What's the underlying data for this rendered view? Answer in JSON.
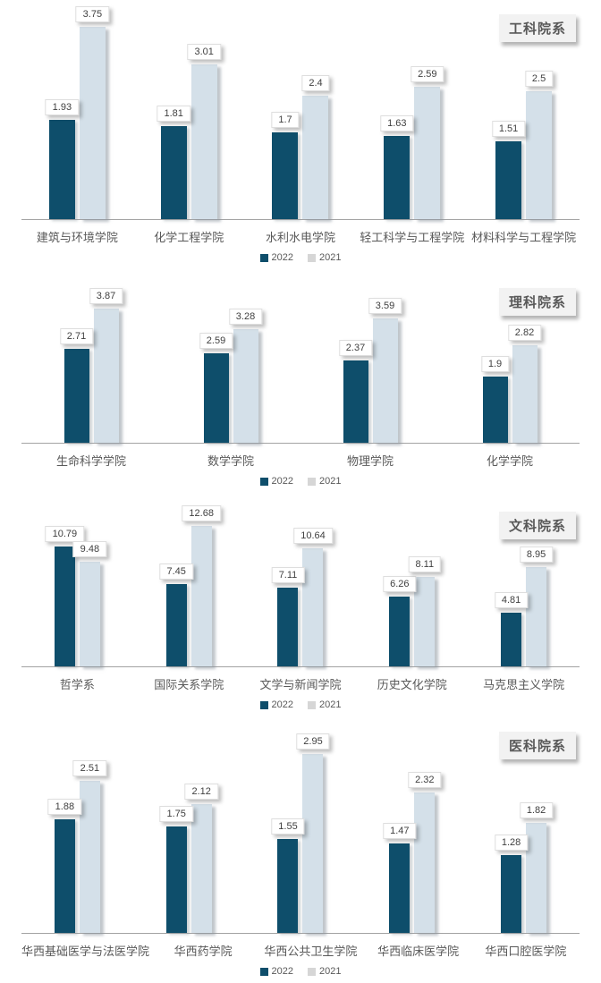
{
  "page": {
    "background": "#ffffff"
  },
  "colors": {
    "series_2022": "#0e4e6b",
    "series_2021": "#d4e0e9",
    "legend_2022_swatch": "#0e4e6b",
    "legend_2021_swatch": "#d6d6d6",
    "axis_line": "#a3a3a3",
    "category_text": "#595959",
    "value_text": "#3f3f3f",
    "badge_bg": "#f2f2f2",
    "badge_text": "#595959"
  },
  "chart_data": [
    {
      "type": "bar",
      "title": "工科院系",
      "grid": false,
      "value_labels": true,
      "legend_position": "bottom",
      "legend": [
        "2022",
        "2021"
      ],
      "categories": [
        "建筑与环境学院",
        "化学工程学院",
        "水利水电学院",
        "轻工科学与工程学院",
        "材料科学与工程学院"
      ],
      "series": [
        {
          "name": "2022",
          "values": [
            1.93,
            1.81,
            1.7,
            1.63,
            1.51
          ]
        },
        {
          "name": "2021",
          "values": [
            3.75,
            3.01,
            2.4,
            2.59,
            2.5
          ]
        }
      ]
    },
    {
      "type": "bar",
      "title": "理科院系",
      "grid": false,
      "value_labels": true,
      "legend_position": "bottom",
      "legend": [
        "2022",
        "2021"
      ],
      "categories": [
        "生命科学学院",
        "数学学院",
        "物理学院",
        "化学学院"
      ],
      "series": [
        {
          "name": "2022",
          "values": [
            2.71,
            2.59,
            2.37,
            1.9
          ]
        },
        {
          "name": "2021",
          "values": [
            3.87,
            3.28,
            3.59,
            2.82
          ]
        }
      ]
    },
    {
      "type": "bar",
      "title": "文科院系",
      "grid": false,
      "value_labels": true,
      "legend_position": "bottom",
      "legend": [
        "2022",
        "2021"
      ],
      "categories": [
        "哲学系",
        "国际关系学院",
        "文学与新闻学院",
        "历史文化学院",
        "马克思主义学院"
      ],
      "series": [
        {
          "name": "2022",
          "values": [
            10.79,
            7.45,
            7.11,
            6.26,
            4.81
          ]
        },
        {
          "name": "2021",
          "values": [
            9.48,
            12.68,
            10.64,
            8.11,
            8.95
          ]
        }
      ]
    },
    {
      "type": "bar",
      "title": "医科院系",
      "grid": false,
      "value_labels": true,
      "legend_position": "bottom",
      "legend": [
        "2022",
        "2021"
      ],
      "categories": [
        "华西基础医学与法医学院",
        "华西药学院",
        "华西公共卫生学院",
        "华西临床医学院",
        "华西口腔医学院"
      ],
      "series": [
        {
          "name": "2022",
          "values": [
            1.88,
            1.75,
            1.55,
            1.47,
            1.28
          ]
        },
        {
          "name": "2021",
          "values": [
            2.51,
            2.12,
            2.95,
            2.32,
            1.82
          ]
        }
      ]
    }
  ]
}
